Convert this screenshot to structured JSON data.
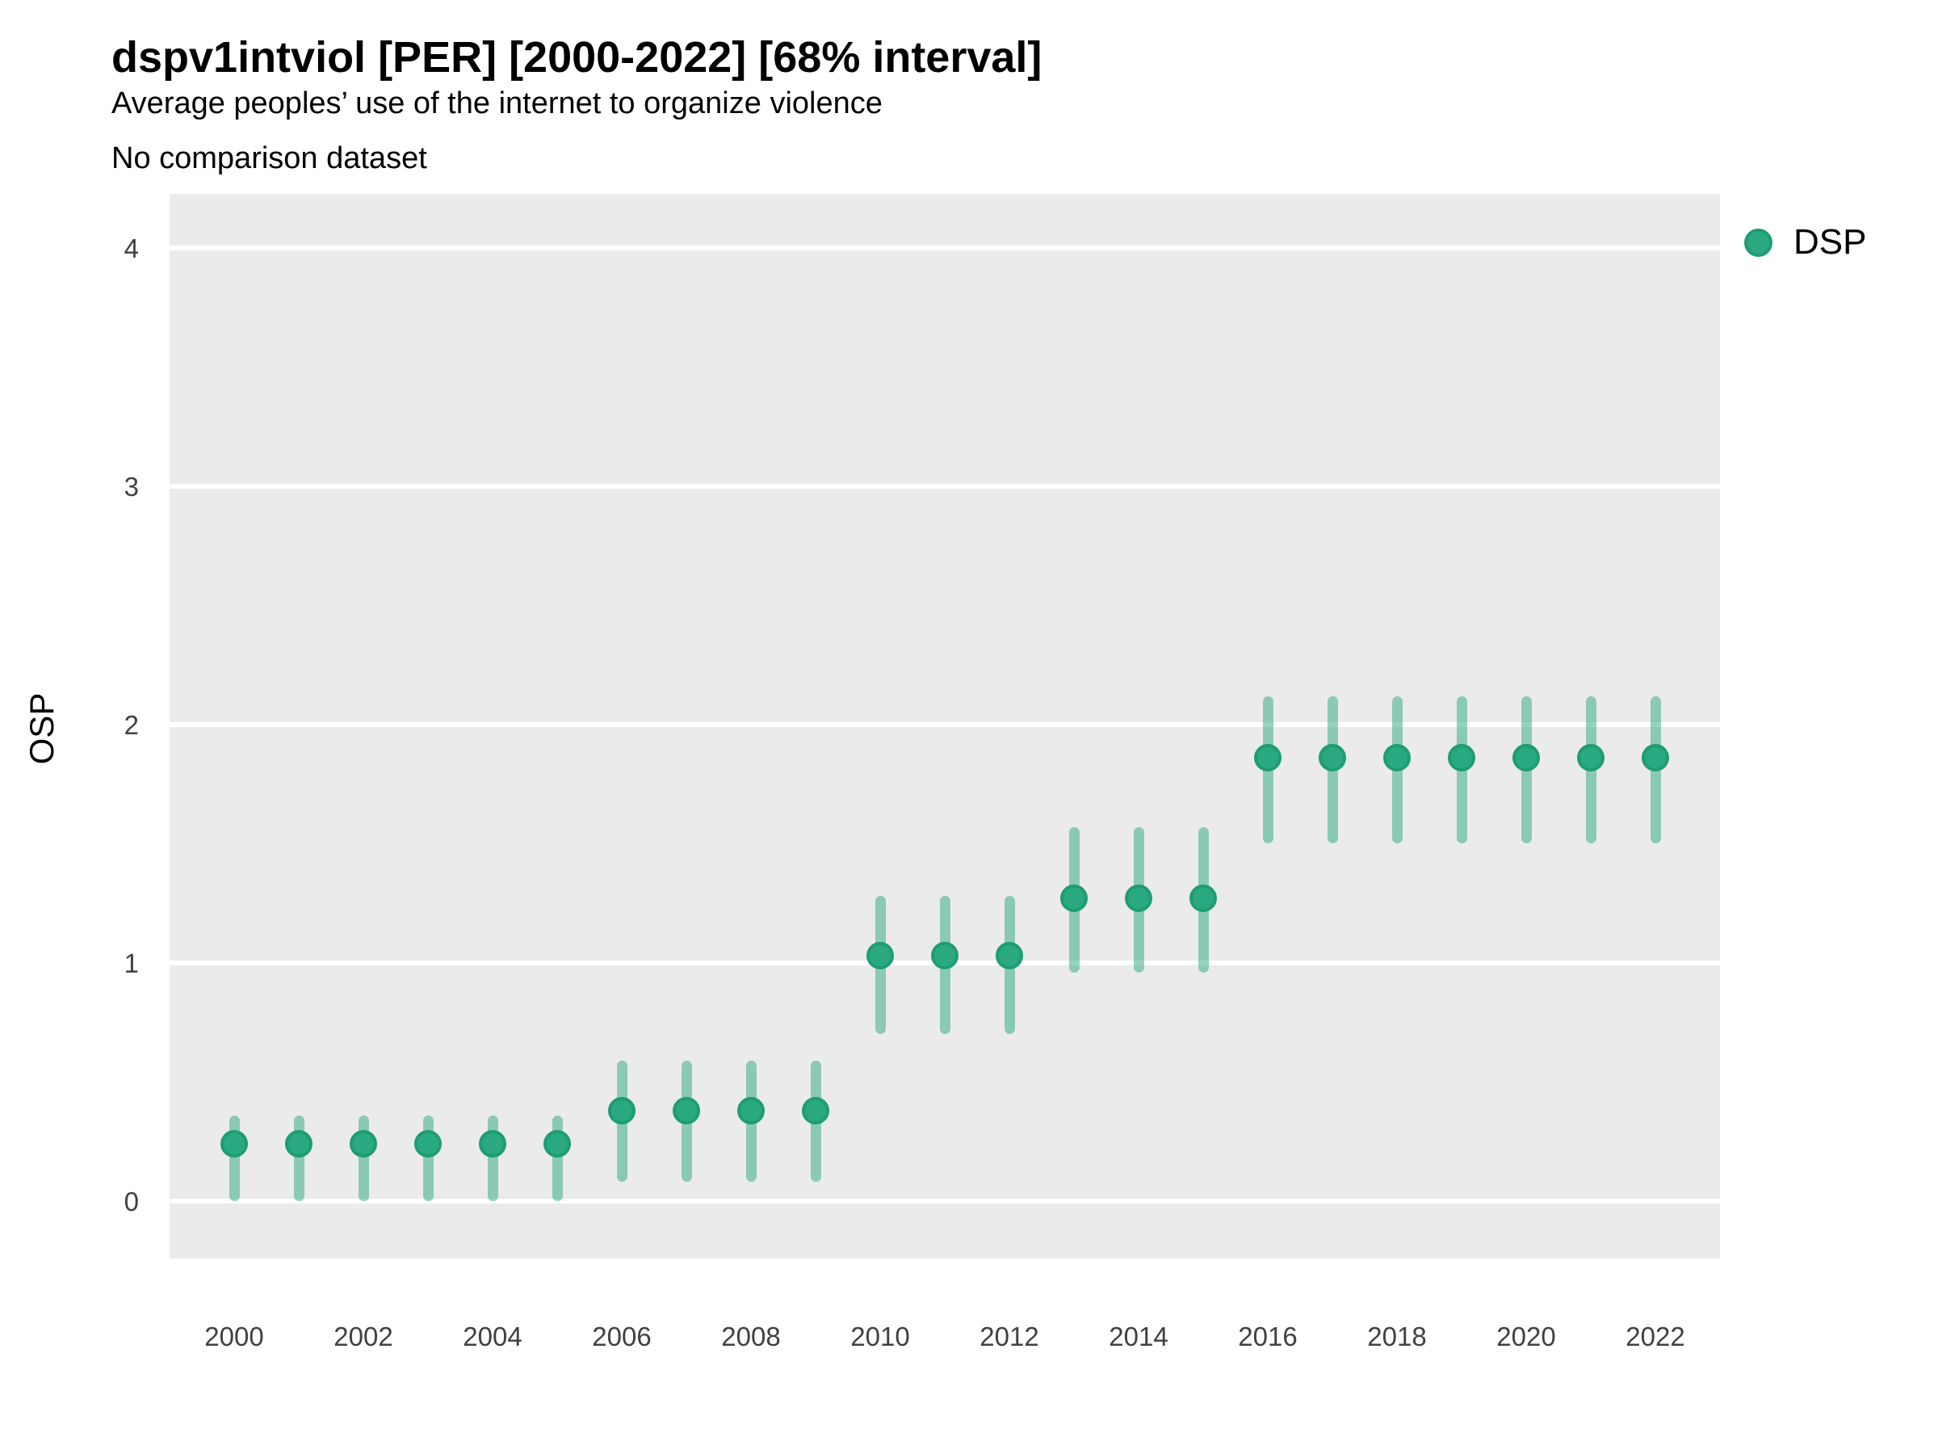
{
  "header": {
    "title": "dspv1intviol [PER] [2000-2022] [68% interval]",
    "subtitle1": "Average peoples’ use of the internet to organize violence",
    "subtitle2": "No comparison dataset"
  },
  "legend": {
    "label": "DSP",
    "marker_color": "#2aa881",
    "position": "right"
  },
  "axes": {
    "y_label": "OSP",
    "y_ticks": [
      0,
      1,
      2,
      3,
      4
    ],
    "x_ticks": [
      2000,
      2002,
      2004,
      2006,
      2008,
      2010,
      2012,
      2014,
      2016,
      2018,
      2020,
      2022
    ]
  },
  "colors": {
    "panel_background": "#ebebeb",
    "gridline": "#ffffff",
    "point_fill": "#2aa881",
    "point_stroke": "#1e9c72",
    "interval_bar": "rgba(42,168,129,0.5)",
    "tick_text": "#404040"
  },
  "chart_data": {
    "type": "scatter",
    "subtype": "pointrange",
    "title": "dspv1intviol [PER] [2000-2022] [68% interval]",
    "xlabel": "",
    "ylabel": "OSP",
    "ylim": [
      -0.24,
      4.23
    ],
    "grid": "major-horizontal-white-on-gray",
    "legend_position": "right",
    "interval_level": "68%",
    "series": [
      {
        "name": "DSP",
        "x": [
          2000,
          2001,
          2002,
          2003,
          2004,
          2005,
          2006,
          2007,
          2008,
          2009,
          2010,
          2011,
          2012,
          2013,
          2014,
          2015,
          2016,
          2017,
          2018,
          2019,
          2020,
          2021,
          2022
        ],
        "y": [
          0.24,
          0.24,
          0.24,
          0.24,
          0.24,
          0.24,
          0.38,
          0.38,
          0.38,
          0.38,
          1.03,
          1.03,
          1.03,
          1.27,
          1.27,
          1.27,
          1.86,
          1.86,
          1.86,
          1.86,
          1.86,
          1.86,
          1.86
        ],
        "y_lo": [
          0.0,
          0.0,
          0.0,
          0.0,
          0.0,
          0.0,
          0.08,
          0.08,
          0.08,
          0.08,
          0.7,
          0.7,
          0.7,
          0.96,
          0.96,
          0.96,
          1.5,
          1.5,
          1.5,
          1.5,
          1.5,
          1.5,
          1.5
        ],
        "y_hi": [
          0.36,
          0.36,
          0.36,
          0.36,
          0.36,
          0.36,
          0.59,
          0.59,
          0.59,
          0.59,
          1.28,
          1.28,
          1.28,
          1.57,
          1.57,
          1.57,
          2.12,
          2.12,
          2.12,
          2.12,
          2.12,
          2.12,
          2.12
        ]
      }
    ]
  }
}
